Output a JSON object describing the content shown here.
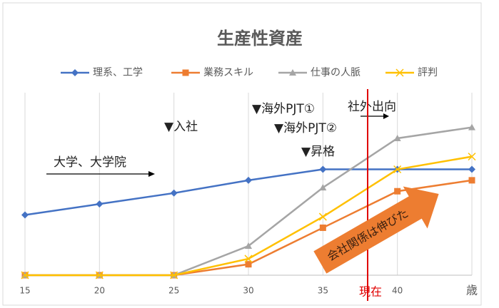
{
  "chart_data": {
    "type": "line",
    "title": "生産性資産",
    "categories": [
      "15",
      "20",
      "25",
      "30",
      "35",
      "40",
      "歳"
    ],
    "ylim": [
      0,
      10
    ],
    "grid": true,
    "legend": "top",
    "series": [
      {
        "name": "理系、工学",
        "color": "#4472c4",
        "marker": "diamond",
        "values": [
          3.3,
          3.9,
          4.5,
          5.2,
          5.8,
          5.8,
          5.8
        ]
      },
      {
        "name": "業務スキル",
        "color": "#ed7d31",
        "marker": "square",
        "values": [
          0,
          0,
          0,
          0.6,
          2.6,
          4.6,
          5.2
        ]
      },
      {
        "name": "仕事の人脈",
        "color": "#a5a5a5",
        "marker": "triangle",
        "values": [
          0,
          0,
          0,
          1.6,
          4.8,
          7.5,
          8.1
        ]
      },
      {
        "name": "評判",
        "color": "#ffc000",
        "marker": "x",
        "values": [
          0,
          0,
          0,
          0.9,
          3.2,
          5.8,
          6.5
        ]
      }
    ],
    "annotations": [
      "▼入社",
      "▼海外PJT①",
      "▼海外PJT②",
      "▼昇格",
      "社外出向",
      "大学、大学院",
      "現在",
      "会社関係は伸びた"
    ]
  }
}
